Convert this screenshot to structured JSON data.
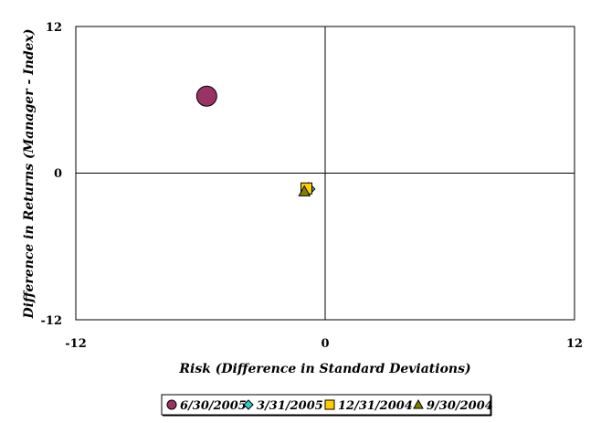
{
  "chart_data": {
    "type": "scatter",
    "title": "",
    "xlabel": "Risk (Difference in Standard Deviations)",
    "ylabel": "Difference in Returns (Manager - Index)",
    "xlim": [
      -12,
      12
    ],
    "ylim": [
      -12,
      12
    ],
    "xticks": [
      "-12",
      "0",
      "12"
    ],
    "yticks": [
      "12",
      "0",
      "-12"
    ],
    "grid": false,
    "legend_position": "bottom",
    "series": [
      {
        "name": "6/30/2005",
        "marker": "circle",
        "color": "#993366",
        "x": -5.7,
        "y": 6.3
      },
      {
        "name": "3/31/2005",
        "marker": "diamond",
        "color": "#33CCCC",
        "x": -0.8,
        "y": -1.3
      },
      {
        "name": "12/31/2004",
        "marker": "square",
        "color": "#FFCC00",
        "x": -0.9,
        "y": -1.25
      },
      {
        "name": "9/30/2004",
        "marker": "triangle",
        "color": "#808000",
        "x": -1.0,
        "y": -1.5
      }
    ]
  }
}
